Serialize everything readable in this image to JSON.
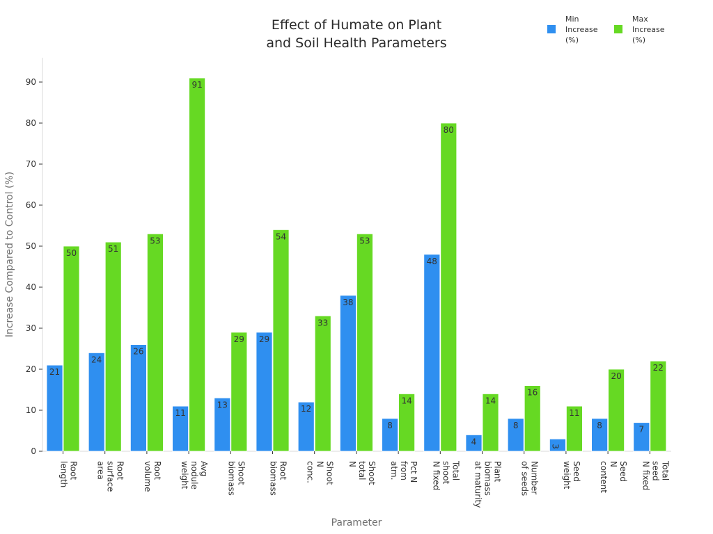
{
  "chart_data": {
    "type": "bar",
    "title": [
      "Effect of Humate on Plant",
      "and Soil Health Parameters"
    ],
    "xlabel": "Parameter",
    "ylabel": "Increase Compared to Control (%)",
    "ylim": [
      0,
      96
    ],
    "yticks": [
      0,
      10,
      20,
      30,
      40,
      50,
      60,
      70,
      80,
      90
    ],
    "grid": false,
    "legend_position": "top-right",
    "categories": [
      [
        "Root",
        "length"
      ],
      [
        "Root",
        "surface",
        "area"
      ],
      [
        "Root",
        "volume"
      ],
      [
        "Avg",
        "nodule",
        "weight"
      ],
      [
        "Shoot",
        "biomass"
      ],
      [
        "Root",
        "biomass"
      ],
      [
        "Shoot",
        "N",
        "conc."
      ],
      [
        "Shoot",
        "total",
        "N"
      ],
      [
        "Pct N",
        "from",
        "atm."
      ],
      [
        "Total",
        "shoot",
        "N fixed"
      ],
      [
        "Plant",
        "biomass",
        "at maturity"
      ],
      [
        "Number",
        "of seeds"
      ],
      [
        "Seed",
        "weight"
      ],
      [
        "Seed",
        "N",
        "content"
      ],
      [
        "Total",
        "seed",
        "N fixed"
      ]
    ],
    "series": [
      {
        "name": [
          "Min",
          "Increase",
          "(%)"
        ],
        "color": "#2f8ff0",
        "values": [
          21,
          24,
          26,
          11,
          13,
          29,
          12,
          38,
          8,
          48,
          4,
          8,
          3,
          8,
          7
        ]
      },
      {
        "name": [
          "Max",
          "Increase",
          "(%)"
        ],
        "color": "#66d923",
        "values": [
          50,
          51,
          53,
          91,
          29,
          54,
          33,
          53,
          14,
          80,
          14,
          16,
          11,
          20,
          22
        ]
      }
    ]
  }
}
